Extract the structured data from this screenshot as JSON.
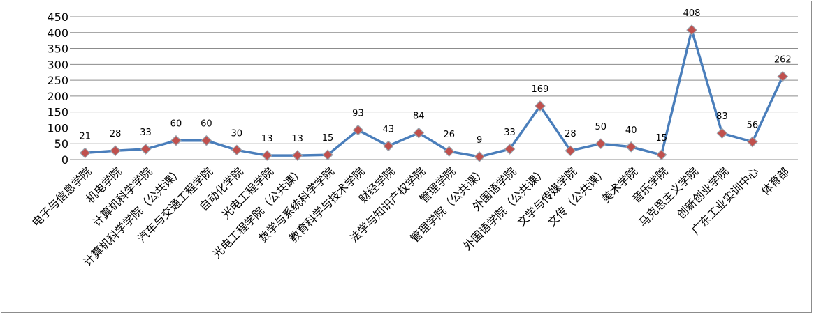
{
  "chart_data": {
    "type": "line",
    "title": "",
    "xlabel": "",
    "ylabel": "",
    "ylim": [
      0,
      450
    ],
    "yticks": [
      0,
      50,
      100,
      150,
      200,
      250,
      300,
      350,
      400,
      450
    ],
    "grid": "horizontal",
    "legend": "none",
    "line_color": "#4a7ebb",
    "marker_color": "#c0504d",
    "categories": [
      "电子与信息学院",
      "机电学院",
      "计算机科学学院",
      "计算机科学学院（公共课）",
      "汽车与交通工程学院",
      "自动化学院",
      "光电工程学院",
      "光电工程学院（公共课）",
      "数学与系统科学学院",
      "教育科学与技术学院",
      "财经学院",
      "法学与知识产权学院",
      "管理学院",
      "管理学院（公共课）",
      "外国语学院",
      "外国语学院（公共课）",
      "文学与传媒学院",
      "文传（公共课）",
      "美术学院",
      "音乐学院",
      "马克思主义学院",
      "创新创业学院",
      "广东工业实训中心",
      "体育部"
    ],
    "values": [
      21,
      28,
      33,
      60,
      60,
      30,
      13,
      13,
      15,
      93,
      43,
      84,
      26,
      9,
      33,
      169,
      28,
      50,
      40,
      15,
      408,
      83,
      56,
      262
    ]
  }
}
